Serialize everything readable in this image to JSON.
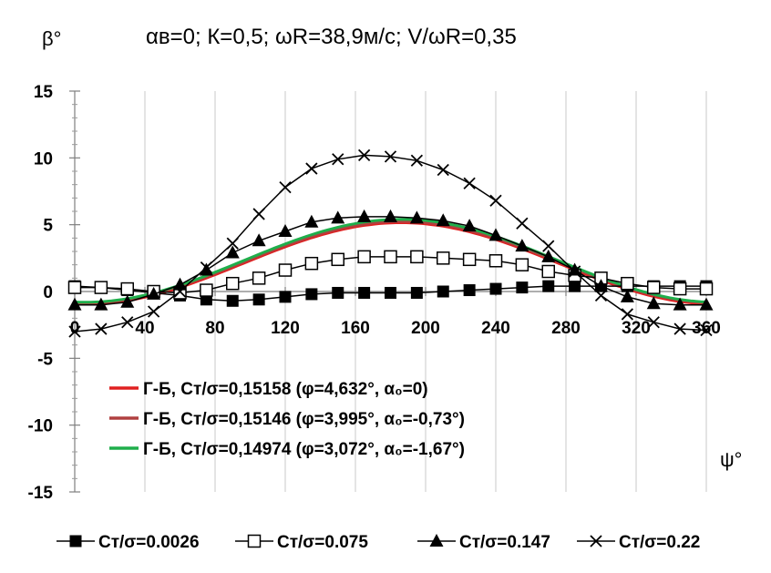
{
  "chart_data": {
    "type": "line",
    "title": "αв=0; К=0,5; ωR=38,9м/с; V/ωR=0,35",
    "ylabel": "β°",
    "xlabel": "ψ°",
    "xlim": [
      0,
      360
    ],
    "ylim": [
      -15,
      15
    ],
    "xticks": [
      "0",
      "40",
      "80",
      "120",
      "160",
      "200",
      "240",
      "280",
      "320",
      "360"
    ],
    "yticks": [
      "15",
      "10",
      "5",
      "0",
      "-5",
      "-10",
      "-15"
    ],
    "grid": "vertical",
    "series": [
      {
        "name": "Ст/σ=0.0026",
        "marker": "filled-square",
        "color": "#000000",
        "x": [
          0,
          15,
          30,
          45,
          60,
          75,
          90,
          105,
          120,
          135,
          150,
          165,
          180,
          195,
          210,
          225,
          240,
          255,
          270,
          285,
          300,
          315,
          330,
          345,
          360
        ],
        "values": [
          0.4,
          0.3,
          0.1,
          -0.1,
          -0.3,
          -0.6,
          -0.7,
          -0.6,
          -0.4,
          -0.2,
          -0.1,
          -0.1,
          -0.1,
          -0.1,
          0.0,
          0.1,
          0.2,
          0.3,
          0.4,
          0.4,
          0.4,
          0.4,
          0.4,
          0.4,
          0.4
        ]
      },
      {
        "name": "Ст/σ=0.075",
        "marker": "open-square",
        "color": "#000000",
        "x": [
          0,
          15,
          30,
          45,
          60,
          75,
          90,
          105,
          120,
          135,
          150,
          165,
          180,
          195,
          210,
          225,
          240,
          255,
          270,
          285,
          300,
          315,
          330,
          345,
          360
        ],
        "values": [
          0.3,
          0.3,
          0.2,
          0.0,
          -0.1,
          0.1,
          0.6,
          1.0,
          1.6,
          2.1,
          2.4,
          2.6,
          2.6,
          2.6,
          2.5,
          2.4,
          2.3,
          2.0,
          1.5,
          1.2,
          1.0,
          0.6,
          0.3,
          0.2,
          0.2
        ]
      },
      {
        "name": "Ст/σ=0.147",
        "marker": "filled-triangle",
        "color": "#000000",
        "x": [
          0,
          15,
          30,
          45,
          60,
          75,
          90,
          105,
          120,
          135,
          150,
          165,
          180,
          195,
          210,
          225,
          240,
          255,
          270,
          285,
          300,
          315,
          330,
          345,
          360
        ],
        "values": [
          -1.0,
          -1.0,
          -0.8,
          -0.2,
          0.5,
          1.6,
          2.9,
          3.8,
          4.5,
          5.2,
          5.5,
          5.6,
          5.6,
          5.5,
          5.3,
          4.9,
          4.2,
          3.4,
          2.6,
          1.6,
          0.4,
          -0.4,
          -0.9,
          -1.0,
          -1.0
        ]
      },
      {
        "name": "Ст/σ=0.22",
        "marker": "cross",
        "color": "#000000",
        "x": [
          0,
          15,
          30,
          45,
          60,
          75,
          90,
          105,
          120,
          135,
          150,
          165,
          180,
          195,
          210,
          225,
          240,
          255,
          270,
          285,
          300,
          315,
          330,
          345,
          360
        ],
        "values": [
          -3.0,
          -2.8,
          -2.3,
          -1.5,
          0.0,
          1.8,
          3.6,
          5.8,
          7.8,
          9.2,
          9.9,
          10.2,
          10.1,
          9.8,
          9.1,
          8.1,
          6.8,
          5.1,
          3.4,
          1.5,
          -0.3,
          -1.7,
          -2.3,
          -2.8,
          -2.9
        ]
      }
    ],
    "curves": [
      {
        "name": "Г-Б, Ст/σ=0,15158 (φ=4,632°, α₀=0)",
        "color": "#e02020",
        "mean": 2.1,
        "amp": 3.05,
        "peak_deg": 186
      },
      {
        "name": "Г-Б, Ст/σ=0,15146 (φ=3,995°, α₀=-0,73°)",
        "color": "#b04040",
        "mean": 2.2,
        "amp": 3.05,
        "peak_deg": 186
      },
      {
        "name": "Г-Б, Ст/σ=0,14974 (φ=3,072°, α₀=-1,67°)",
        "color": "#1fae4b",
        "mean": 2.3,
        "amp": 3.1,
        "peak_deg": 186
      }
    ]
  }
}
